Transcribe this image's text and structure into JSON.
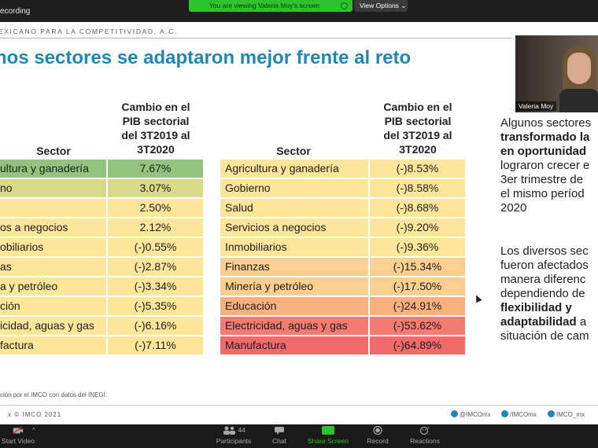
{
  "top_bar": {
    "recording_label": "ecording",
    "viewing_notice": "You are viewing Valeria Moy's screen",
    "view_options_label": "View Options ⌄"
  },
  "slide": {
    "org_name": "EXICANO PARA LA COMPETITIVIDAD, A.C.",
    "title": "nos sectores se adaptaron mejor frente al reto",
    "left_table": {
      "sector_header": "Sector",
      "value_header": [
        "Cambio en el",
        "PIB sectorial",
        "del 3T2019 al",
        "3T2020"
      ],
      "rows": [
        {
          "sector": "ultura y ganadería",
          "value": "7.67%",
          "color": "#93c47d"
        },
        {
          "sector": "no",
          "value": "3.07%",
          "color": "#d9d98a"
        },
        {
          "sector": "",
          "value": "2.50%",
          "color": "#fde59a"
        },
        {
          "sector": "os a negocios",
          "value": "2.12%",
          "color": "#fde59a"
        },
        {
          "sector": "obiliarios",
          "value": "(-)0.55%",
          "color": "#fde59a"
        },
        {
          "sector": "as",
          "value": "(-)2.87%",
          "color": "#fde59a"
        },
        {
          "sector": "a y petróleo",
          "value": "(-)3.34%",
          "color": "#fde59a"
        },
        {
          "sector": "ción",
          "value": "(-)5.35%",
          "color": "#fde59a"
        },
        {
          "sector": "icidad, aguas y gas",
          "value": "(-)6.16%",
          "color": "#fde59a"
        },
        {
          "sector": "factura",
          "value": "(-)7.11%",
          "color": "#fde59a"
        }
      ]
    },
    "right_table": {
      "sector_header": "Sector",
      "value_header": [
        "Cambio en el",
        "PIB sectorial",
        "del 3T2019 al",
        "3T2020"
      ],
      "rows": [
        {
          "sector": "Agricultura y ganadería",
          "value": "(-)8.53%",
          "color": "#fde59a"
        },
        {
          "sector": "Gobierno",
          "value": "(-)8.58%",
          "color": "#fde59a"
        },
        {
          "sector": "Salud",
          "value": "(-)8.68%",
          "color": "#fde59a"
        },
        {
          "sector": "Servicios a negocios",
          "value": "(-)9.20%",
          "color": "#fde59a"
        },
        {
          "sector": "Inmobiliarios",
          "value": "(-)9.36%",
          "color": "#fde59a"
        },
        {
          "sector": "Finanzas",
          "value": "(-)15.34%",
          "color": "#fbcf8f"
        },
        {
          "sector": "Minería y petróleo",
          "value": "(-)17.50%",
          "color": "#fbcf8f"
        },
        {
          "sector": "Educación",
          "value": "(-)24.91%",
          "color": "#f9b07f"
        },
        {
          "sector": "Electricidad, aguas y gas",
          "value": "(-)53.62%",
          "color": "#f37b72"
        },
        {
          "sector": "Manufactura",
          "value": "(-)64.89%",
          "color": "#f26b6b"
        }
      ]
    },
    "side_text": {
      "p1_line1": "Algunos sectores",
      "p1_line2": "transformado la",
      "p1_line3": "en oportunidad",
      "p1_line4": "lograron crecer e",
      "p1_line5": "3er trimestre de",
      "p1_line6": "el mismo períod",
      "p1_line7": "2020",
      "p2_line1": "Los diversos sec",
      "p2_line2": "fueron afectados",
      "p2_line3": "manera diferenc",
      "p2_line4": "dependiendo de",
      "p2_line5": "flexibilidad y",
      "p2_line6": "adaptabilidad",
      "p2_line6b": " a",
      "p2_line7": "situación de cam"
    },
    "source": "ción por el IMCO con datos del INEGI.",
    "copyright": "x   © IMCO 2021",
    "social": {
      "twitter": "@IMCOmx",
      "facebook": "/IMCOmx",
      "instagram": "IMCO_mx"
    }
  },
  "video": {
    "participant_name": "Valeria Moy"
  },
  "toolbar": {
    "start_video": "Start Video",
    "participants_count": "44",
    "participants": "Participants",
    "chat": "Chat",
    "share_screen": "Share Screen",
    "record": "Record",
    "reactions": "Reactions"
  },
  "colors": {
    "title": "#1e87b3",
    "share_green": "#2ec22e"
  }
}
